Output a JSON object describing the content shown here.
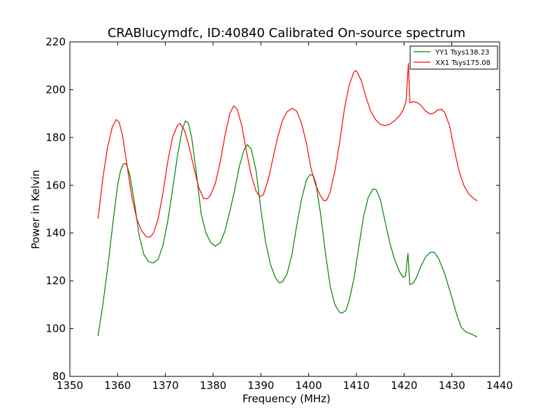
{
  "chart_data": {
    "type": "line",
    "title": "CRABlucymdfc, ID:40840 Calibrated On-source spectrum",
    "xlabel": "Frequency (MHz)",
    "ylabel": "Power in Kelvin",
    "xlim": [
      1350,
      1440
    ],
    "ylim": [
      80,
      220
    ],
    "xticks": [
      1350,
      1360,
      1370,
      1380,
      1390,
      1400,
      1410,
      1420,
      1430,
      1440
    ],
    "yticks": [
      80,
      100,
      120,
      140,
      160,
      180,
      200,
      220
    ],
    "legend_position": "top-right",
    "grid": false,
    "series": [
      {
        "name": "YY1 Tsys138.23",
        "color": "#008000",
        "points": [
          [
            1355.9,
            97
          ],
          [
            1356.9,
            110
          ],
          [
            1358.0,
            127
          ],
          [
            1359.0,
            144
          ],
          [
            1360.0,
            160
          ],
          [
            1360.6,
            166
          ],
          [
            1361.2,
            169
          ],
          [
            1361.8,
            169
          ],
          [
            1362.6,
            164
          ],
          [
            1363.5,
            153
          ],
          [
            1364.5,
            139
          ],
          [
            1365.5,
            131
          ],
          [
            1366.5,
            128
          ],
          [
            1367.5,
            127.5
          ],
          [
            1368.5,
            129
          ],
          [
            1369.5,
            135
          ],
          [
            1370.5,
            145
          ],
          [
            1371.5,
            158
          ],
          [
            1372.5,
            172
          ],
          [
            1373.5,
            183
          ],
          [
            1374.2,
            187
          ],
          [
            1374.8,
            186
          ],
          [
            1375.5,
            180
          ],
          [
            1376.5,
            165
          ],
          [
            1377.5,
            148
          ],
          [
            1378.5,
            140
          ],
          [
            1379.5,
            136
          ],
          [
            1380.5,
            134.5
          ],
          [
            1381.5,
            136
          ],
          [
            1382.5,
            141
          ],
          [
            1383.5,
            149
          ],
          [
            1384.5,
            158
          ],
          [
            1385.5,
            168
          ],
          [
            1386.5,
            175
          ],
          [
            1387.2,
            177
          ],
          [
            1388.0,
            175
          ],
          [
            1389.0,
            166
          ],
          [
            1390.0,
            150
          ],
          [
            1391.0,
            136
          ],
          [
            1392.0,
            127
          ],
          [
            1393.0,
            121.5
          ],
          [
            1393.8,
            119.2
          ],
          [
            1394.5,
            119.5
          ],
          [
            1395.5,
            123
          ],
          [
            1396.5,
            131
          ],
          [
            1397.5,
            143
          ],
          [
            1398.5,
            154
          ],
          [
            1399.5,
            162
          ],
          [
            1400.3,
            164.5
          ],
          [
            1401.0,
            164
          ],
          [
            1401.5,
            161
          ],
          [
            1402.5,
            148
          ],
          [
            1403.5,
            132
          ],
          [
            1404.5,
            118
          ],
          [
            1405.5,
            110
          ],
          [
            1406.5,
            106.8
          ],
          [
            1407.0,
            106.5
          ],
          [
            1407.8,
            107.5
          ],
          [
            1408.5,
            112
          ],
          [
            1409.5,
            121
          ],
          [
            1410.5,
            134
          ],
          [
            1411.5,
            147
          ],
          [
            1412.5,
            155
          ],
          [
            1413.5,
            158.5
          ],
          [
            1414.2,
            158
          ],
          [
            1415.0,
            154
          ],
          [
            1416.0,
            145
          ],
          [
            1417.0,
            136
          ],
          [
            1418.0,
            129
          ],
          [
            1419.0,
            124
          ],
          [
            1419.8,
            121.5
          ],
          [
            1420.3,
            122
          ],
          [
            1420.8,
            131.5
          ],
          [
            1421.2,
            118.5
          ],
          [
            1421.8,
            118.8
          ],
          [
            1422.5,
            121
          ],
          [
            1423.5,
            126
          ],
          [
            1424.5,
            130
          ],
          [
            1425.5,
            132
          ],
          [
            1426.3,
            132
          ],
          [
            1427.2,
            129.5
          ],
          [
            1428.5,
            123
          ],
          [
            1430.0,
            113
          ],
          [
            1431.0,
            106
          ],
          [
            1432.0,
            100.5
          ],
          [
            1433.0,
            98.5
          ],
          [
            1434.0,
            97.8
          ],
          [
            1435.3,
            96.5
          ]
        ]
      },
      {
        "name": "XX1 Tsys175.08",
        "color": "#ff0000",
        "points": [
          [
            1355.9,
            146
          ],
          [
            1356.9,
            163
          ],
          [
            1357.9,
            176
          ],
          [
            1358.9,
            184.5
          ],
          [
            1359.7,
            187.5
          ],
          [
            1360.3,
            186.5
          ],
          [
            1361.0,
            181
          ],
          [
            1362.0,
            168
          ],
          [
            1363.0,
            155
          ],
          [
            1364.0,
            146
          ],
          [
            1365.0,
            141
          ],
          [
            1366.0,
            138.5
          ],
          [
            1366.8,
            138.3
          ],
          [
            1367.5,
            140
          ],
          [
            1368.5,
            146
          ],
          [
            1369.5,
            157
          ],
          [
            1370.5,
            170
          ],
          [
            1371.5,
            180
          ],
          [
            1372.5,
            185
          ],
          [
            1373.1,
            185.8
          ],
          [
            1374.0,
            183
          ],
          [
            1375.0,
            176
          ],
          [
            1376.0,
            167
          ],
          [
            1377.0,
            159
          ],
          [
            1378.0,
            154.5
          ],
          [
            1378.8,
            154.3
          ],
          [
            1379.5,
            156
          ],
          [
            1380.5,
            161
          ],
          [
            1381.5,
            170
          ],
          [
            1382.5,
            181
          ],
          [
            1383.5,
            190
          ],
          [
            1384.3,
            193.2
          ],
          [
            1385.0,
            192
          ],
          [
            1386.0,
            185
          ],
          [
            1387.0,
            174
          ],
          [
            1388.0,
            164
          ],
          [
            1389.0,
            157.5
          ],
          [
            1389.8,
            155.2
          ],
          [
            1390.5,
            156
          ],
          [
            1391.5,
            162
          ],
          [
            1392.5,
            171
          ],
          [
            1393.5,
            180
          ],
          [
            1394.5,
            187
          ],
          [
            1395.5,
            190.8
          ],
          [
            1396.6,
            192.2
          ],
          [
            1397.5,
            191
          ],
          [
            1398.5,
            186
          ],
          [
            1399.5,
            178
          ],
          [
            1400.5,
            167
          ],
          [
            1401.5,
            160
          ],
          [
            1402.5,
            155.5
          ],
          [
            1403.2,
            153.5
          ],
          [
            1403.8,
            153.8
          ],
          [
            1404.5,
            157
          ],
          [
            1405.5,
            166
          ],
          [
            1406.5,
            178
          ],
          [
            1407.5,
            192
          ],
          [
            1408.5,
            202
          ],
          [
            1409.5,
            207.5
          ],
          [
            1410.0,
            208
          ],
          [
            1411.0,
            204
          ],
          [
            1412.0,
            197
          ],
          [
            1413.0,
            191
          ],
          [
            1414.0,
            187.5
          ],
          [
            1415.0,
            185.5
          ],
          [
            1416.0,
            185
          ],
          [
            1417.0,
            185.5
          ],
          [
            1418.0,
            187
          ],
          [
            1419.0,
            189
          ],
          [
            1419.8,
            191.5
          ],
          [
            1420.4,
            195
          ],
          [
            1420.9,
            211
          ],
          [
            1421.2,
            194.5
          ],
          [
            1422.0,
            195
          ],
          [
            1422.8,
            194.5
          ],
          [
            1423.5,
            193.5
          ],
          [
            1424.5,
            191
          ],
          [
            1425.5,
            189.8
          ],
          [
            1426.3,
            190.3
          ],
          [
            1427.0,
            191.5
          ],
          [
            1427.8,
            191.8
          ],
          [
            1428.5,
            190.5
          ],
          [
            1429.5,
            185
          ],
          [
            1430.5,
            175
          ],
          [
            1431.5,
            166
          ],
          [
            1432.5,
            160
          ],
          [
            1433.5,
            156.5
          ],
          [
            1434.5,
            154.5
          ],
          [
            1435.3,
            153.5
          ]
        ]
      }
    ]
  }
}
